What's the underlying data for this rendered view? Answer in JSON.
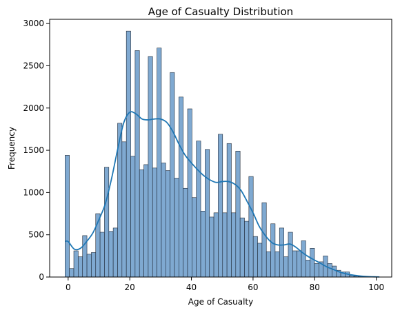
{
  "chart_data": {
    "type": "bar",
    "title": "Age of Casualty Distribution",
    "xlabel": "Age of Casualty",
    "ylabel": "Frequency",
    "xlim": [
      -6,
      105
    ],
    "ylim": [
      0,
      3050
    ],
    "x_ticks": [
      0,
      20,
      40,
      60,
      80,
      100
    ],
    "y_ticks": [
      0,
      500,
      1000,
      1500,
      2000,
      2500,
      3000
    ],
    "bin_width": 1.42,
    "bins": [
      {
        "x0": -1.0,
        "value": 1440
      },
      {
        "x0": 0.42,
        "value": 100
      },
      {
        "x0": 1.84,
        "value": 310
      },
      {
        "x0": 3.26,
        "value": 240
      },
      {
        "x0": 4.68,
        "value": 490
      },
      {
        "x0": 6.1,
        "value": 270
      },
      {
        "x0": 7.52,
        "value": 290
      },
      {
        "x0": 8.94,
        "value": 750
      },
      {
        "x0": 10.36,
        "value": 530
      },
      {
        "x0": 11.78,
        "value": 1300
      },
      {
        "x0": 13.2,
        "value": 540
      },
      {
        "x0": 14.62,
        "value": 580
      },
      {
        "x0": 16.04,
        "value": 1820
      },
      {
        "x0": 17.46,
        "value": 1600
      },
      {
        "x0": 18.88,
        "value": 2910
      },
      {
        "x0": 20.3,
        "value": 1430
      },
      {
        "x0": 21.72,
        "value": 2680
      },
      {
        "x0": 23.14,
        "value": 1270
      },
      {
        "x0": 24.56,
        "value": 1330
      },
      {
        "x0": 25.98,
        "value": 2610
      },
      {
        "x0": 27.4,
        "value": 1290
      },
      {
        "x0": 28.82,
        "value": 2710
      },
      {
        "x0": 30.24,
        "value": 1350
      },
      {
        "x0": 31.66,
        "value": 1260
      },
      {
        "x0": 33.08,
        "value": 2420
      },
      {
        "x0": 34.5,
        "value": 1170
      },
      {
        "x0": 35.92,
        "value": 2130
      },
      {
        "x0": 37.34,
        "value": 1050
      },
      {
        "x0": 38.76,
        "value": 1990
      },
      {
        "x0": 40.18,
        "value": 940
      },
      {
        "x0": 41.6,
        "value": 1610
      },
      {
        "x0": 43.02,
        "value": 780
      },
      {
        "x0": 44.44,
        "value": 1510
      },
      {
        "x0": 45.86,
        "value": 710
      },
      {
        "x0": 47.28,
        "value": 760
      },
      {
        "x0": 48.7,
        "value": 1690
      },
      {
        "x0": 50.12,
        "value": 760
      },
      {
        "x0": 51.54,
        "value": 1580
      },
      {
        "x0": 52.96,
        "value": 760
      },
      {
        "x0": 54.38,
        "value": 1490
      },
      {
        "x0": 55.8,
        "value": 700
      },
      {
        "x0": 57.22,
        "value": 660
      },
      {
        "x0": 58.64,
        "value": 1190
      },
      {
        "x0": 60.06,
        "value": 480
      },
      {
        "x0": 61.48,
        "value": 400
      },
      {
        "x0": 62.9,
        "value": 880
      },
      {
        "x0": 64.32,
        "value": 300
      },
      {
        "x0": 65.74,
        "value": 630
      },
      {
        "x0": 67.16,
        "value": 300
      },
      {
        "x0": 68.58,
        "value": 580
      },
      {
        "x0": 70.0,
        "value": 240
      },
      {
        "x0": 71.42,
        "value": 530
      },
      {
        "x0": 72.84,
        "value": 310
      },
      {
        "x0": 74.26,
        "value": 310
      },
      {
        "x0": 75.68,
        "value": 430
      },
      {
        "x0": 77.1,
        "value": 200
      },
      {
        "x0": 78.52,
        "value": 340
      },
      {
        "x0": 79.94,
        "value": 160
      },
      {
        "x0": 81.36,
        "value": 180
      },
      {
        "x0": 82.78,
        "value": 250
      },
      {
        "x0": 84.2,
        "value": 160
      },
      {
        "x0": 85.62,
        "value": 130
      },
      {
        "x0": 87.04,
        "value": 80
      },
      {
        "x0": 88.46,
        "value": 60
      },
      {
        "x0": 89.88,
        "value": 60
      },
      {
        "x0": 91.3,
        "value": 20
      },
      {
        "x0": 92.72,
        "value": 10
      },
      {
        "x0": 94.14,
        "value": 5
      },
      {
        "x0": 95.56,
        "value": 3
      },
      {
        "x0": 96.98,
        "value": 2
      },
      {
        "x0": 98.4,
        "value": 1
      },
      {
        "x0": 99.82,
        "value": 1
      }
    ],
    "kde": {
      "x": [
        -1,
        0,
        2,
        4,
        6,
        8,
        10,
        12,
        14,
        16,
        18,
        20,
        22,
        24,
        26,
        28,
        30,
        32,
        34,
        36,
        38,
        40,
        42,
        44,
        46,
        48,
        50,
        52,
        54,
        56,
        58,
        60,
        62,
        64,
        66,
        68,
        70,
        72,
        74,
        76,
        78,
        80,
        82,
        84,
        86,
        88,
        90,
        92,
        94,
        96,
        98,
        100,
        101
      ],
      "y": [
        420,
        420,
        330,
        340,
        420,
        520,
        680,
        860,
        1150,
        1500,
        1820,
        1950,
        1930,
        1870,
        1860,
        1870,
        1870,
        1830,
        1720,
        1570,
        1440,
        1350,
        1270,
        1200,
        1150,
        1120,
        1130,
        1130,
        1100,
        1030,
        900,
        760,
        600,
        490,
        410,
        380,
        380,
        390,
        350,
        290,
        240,
        200,
        160,
        120,
        90,
        60,
        40,
        25,
        15,
        8,
        4,
        2,
        1
      ]
    },
    "bar_color": "#7fa9d1",
    "bar_edge_color": "#1f2937",
    "kde_color": "#1f77b4",
    "grid": false,
    "legend": "none"
  }
}
